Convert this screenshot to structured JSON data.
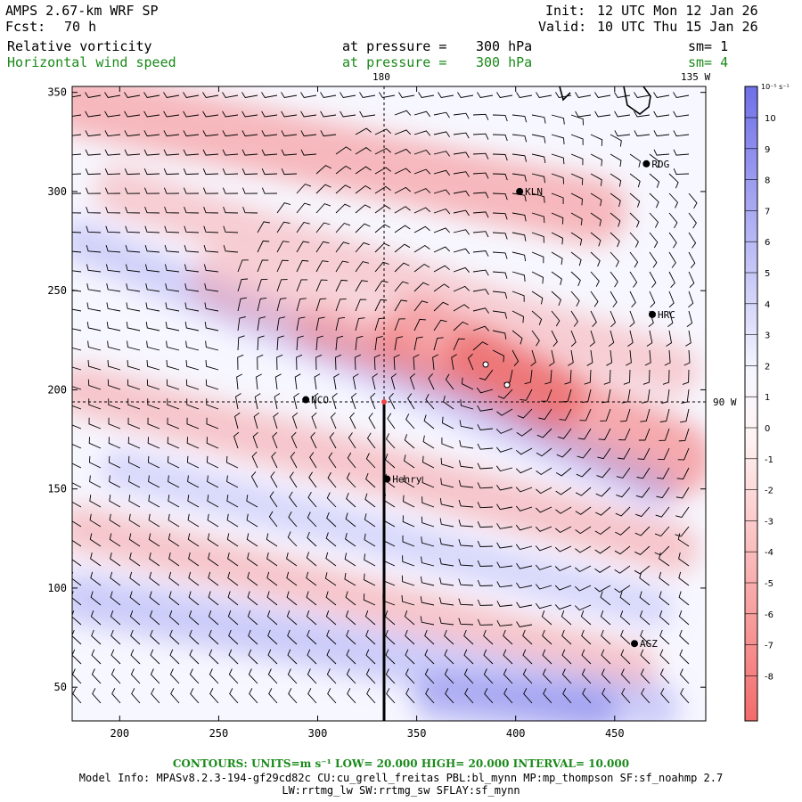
{
  "header": {
    "model_title": "AMPS 2.67-km WRF SP",
    "fcst_label": "Fcst:",
    "fcst_value": "70 h",
    "init_label": "Init:",
    "init_value": "12 UTC Mon 12 Jan 26",
    "valid_label": "Valid:",
    "valid_value": "10 UTC Thu 15 Jan 26"
  },
  "fields": [
    {
      "name": "Relative vorticity",
      "level_label": "at pressure =",
      "level_value": "300 hPa",
      "sm": "sm= 1",
      "color": "#000000"
    },
    {
      "name": "Horizontal wind speed",
      "level_label": "at pressure =",
      "level_value": "300 hPa",
      "sm": "sm= 4",
      "color": "#1a8a1a"
    }
  ],
  "map": {
    "x_ticks": [
      "200",
      "250",
      "300",
      "350",
      "400",
      "450"
    ],
    "y_ticks": [
      "50",
      "100",
      "150",
      "200",
      "250",
      "300",
      "350"
    ],
    "lon_labels": [
      "180",
      "135 W",
      "90 W"
    ],
    "stations": [
      {
        "name": "RDG",
        "x": 466,
        "y": 314
      },
      {
        "name": "KLN",
        "x": 402,
        "y": 300
      },
      {
        "name": "HRC",
        "x": 469,
        "y": 238
      },
      {
        "name": "NCO",
        "x": 294,
        "y": 195
      },
      {
        "name": "Henry",
        "x": 335,
        "y": 155
      },
      {
        "name": "AGZ",
        "x": 460,
        "y": 72
      }
    ]
  },
  "colorbar": {
    "unit_label": "10⁻⁵ s⁻¹",
    "labels": [
      "10",
      "9",
      "8",
      "7",
      "6",
      "5",
      "4",
      "3",
      "2",
      "1",
      "0",
      "-1",
      "-2",
      "-3",
      "-4",
      "-5",
      "-6",
      "-7",
      "-8"
    ]
  },
  "footer": {
    "contours": "CONTOURS:  UNITS=m s⁻¹  LOW=  20.000      HIGH=  20.000      INTERVAL=   10.000",
    "model_info": "Model Info: MPASv8.2.3-194-gf29cd82c CU:cu_grell_freitas PBL:bl_mynn MP:mp_thompson SF:sf_noahmp 2.7",
    "model_info_2": "LW:rrtmg_lw SW:rrtmg_sw SFLAY:sf_mynn"
  },
  "colors": {
    "positive": "#6f6fe8",
    "negative": "#f36b6b",
    "text_green": "#1a8a1a"
  }
}
